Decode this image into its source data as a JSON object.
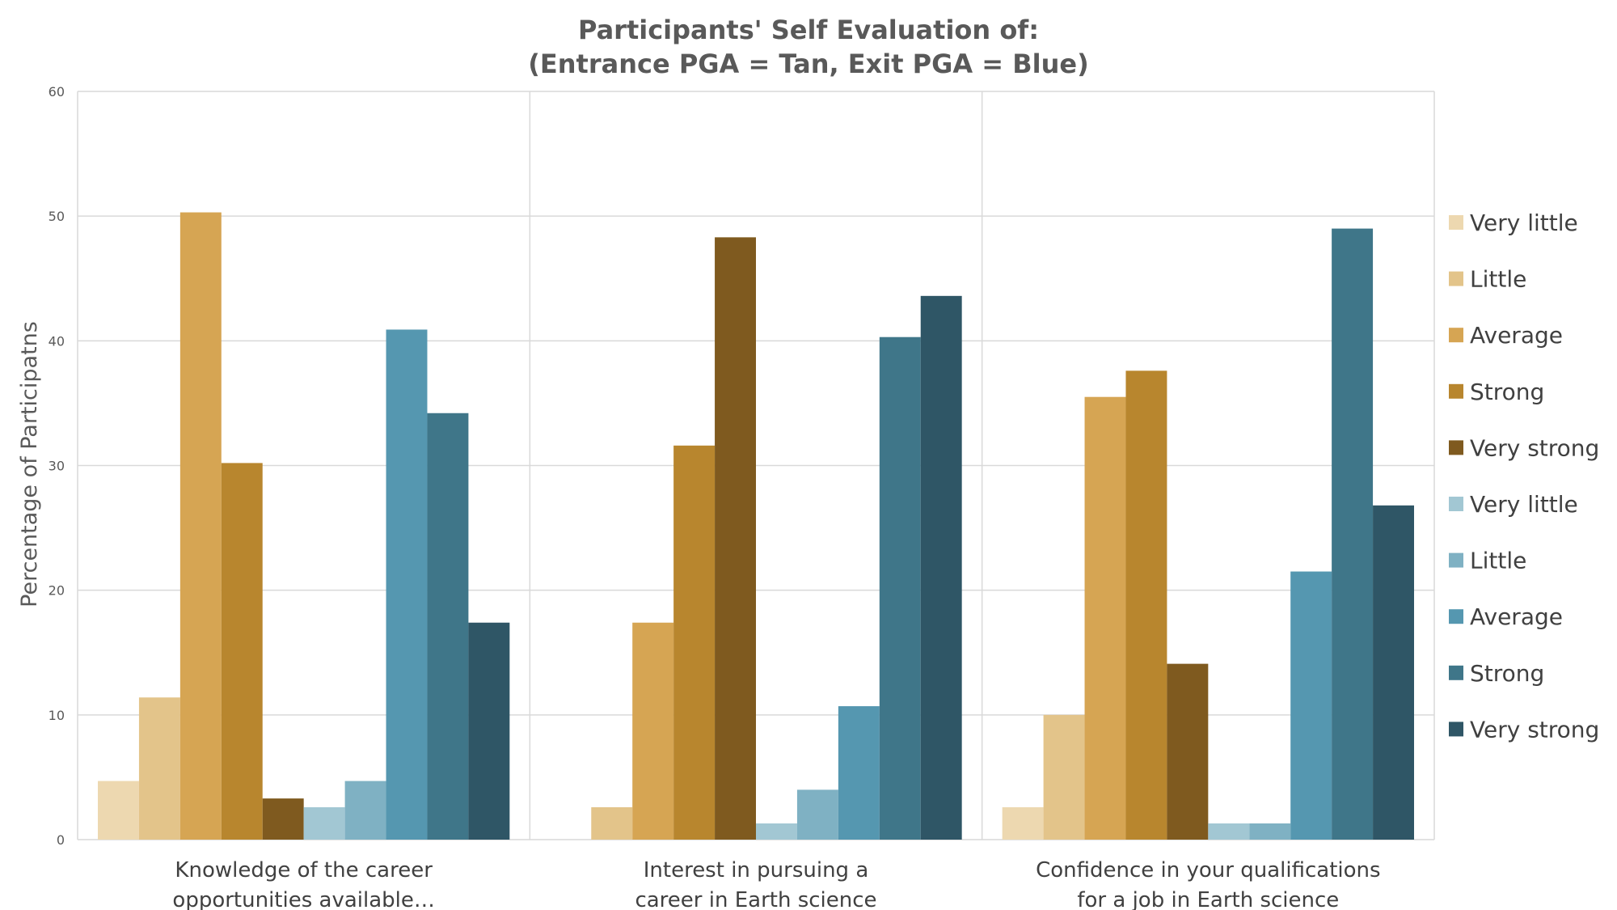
{
  "chart_data": {
    "type": "bar",
    "title": [
      "Participants' Self Evaluation of:",
      "(Entrance PGA = Tan, Exit PGA = Blue)"
    ],
    "ylabel": "Percentage of Participatns",
    "xlabel": "",
    "ylim": [
      0,
      60
    ],
    "yticks": [
      0,
      10,
      20,
      30,
      40,
      50,
      60
    ],
    "grid": true,
    "legend_position": "right",
    "categories": [
      [
        "Knowledge of the career",
        "opportunities available…"
      ],
      [
        "Interest in pursuing a",
        "career in Earth science"
      ],
      [
        "Confidence in your qualifications",
        "for a job in Earth science"
      ]
    ],
    "series": [
      {
        "name": "Very little",
        "color": "#EDD8B0",
        "values": [
          4.7,
          0,
          2.6
        ]
      },
      {
        "name": "Little",
        "color": "#E3C48A",
        "values": [
          11.4,
          2.6,
          10.0
        ]
      },
      {
        "name": "Average",
        "color": "#D6A553",
        "values": [
          50.3,
          17.4,
          35.5
        ]
      },
      {
        "name": "Strong",
        "color": "#B8862E",
        "values": [
          30.2,
          31.6,
          37.6
        ]
      },
      {
        "name": "Very strong",
        "color": "#7F5A1F",
        "values": [
          3.3,
          48.3,
          14.1
        ]
      },
      {
        "name": "Very little",
        "color": "#A2C7D3",
        "values": [
          2.6,
          1.3,
          1.3
        ]
      },
      {
        "name": "Little",
        "color": "#7FB1C3",
        "values": [
          4.7,
          4.0,
          1.3
        ]
      },
      {
        "name": "Average",
        "color": "#5597B0",
        "values": [
          40.9,
          10.7,
          21.5
        ]
      },
      {
        "name": "Strong",
        "color": "#3F7689",
        "values": [
          34.2,
          40.3,
          49.0
        ]
      },
      {
        "name": "Very strong",
        "color": "#2F5666",
        "values": [
          17.4,
          43.6,
          26.8
        ]
      }
    ]
  }
}
